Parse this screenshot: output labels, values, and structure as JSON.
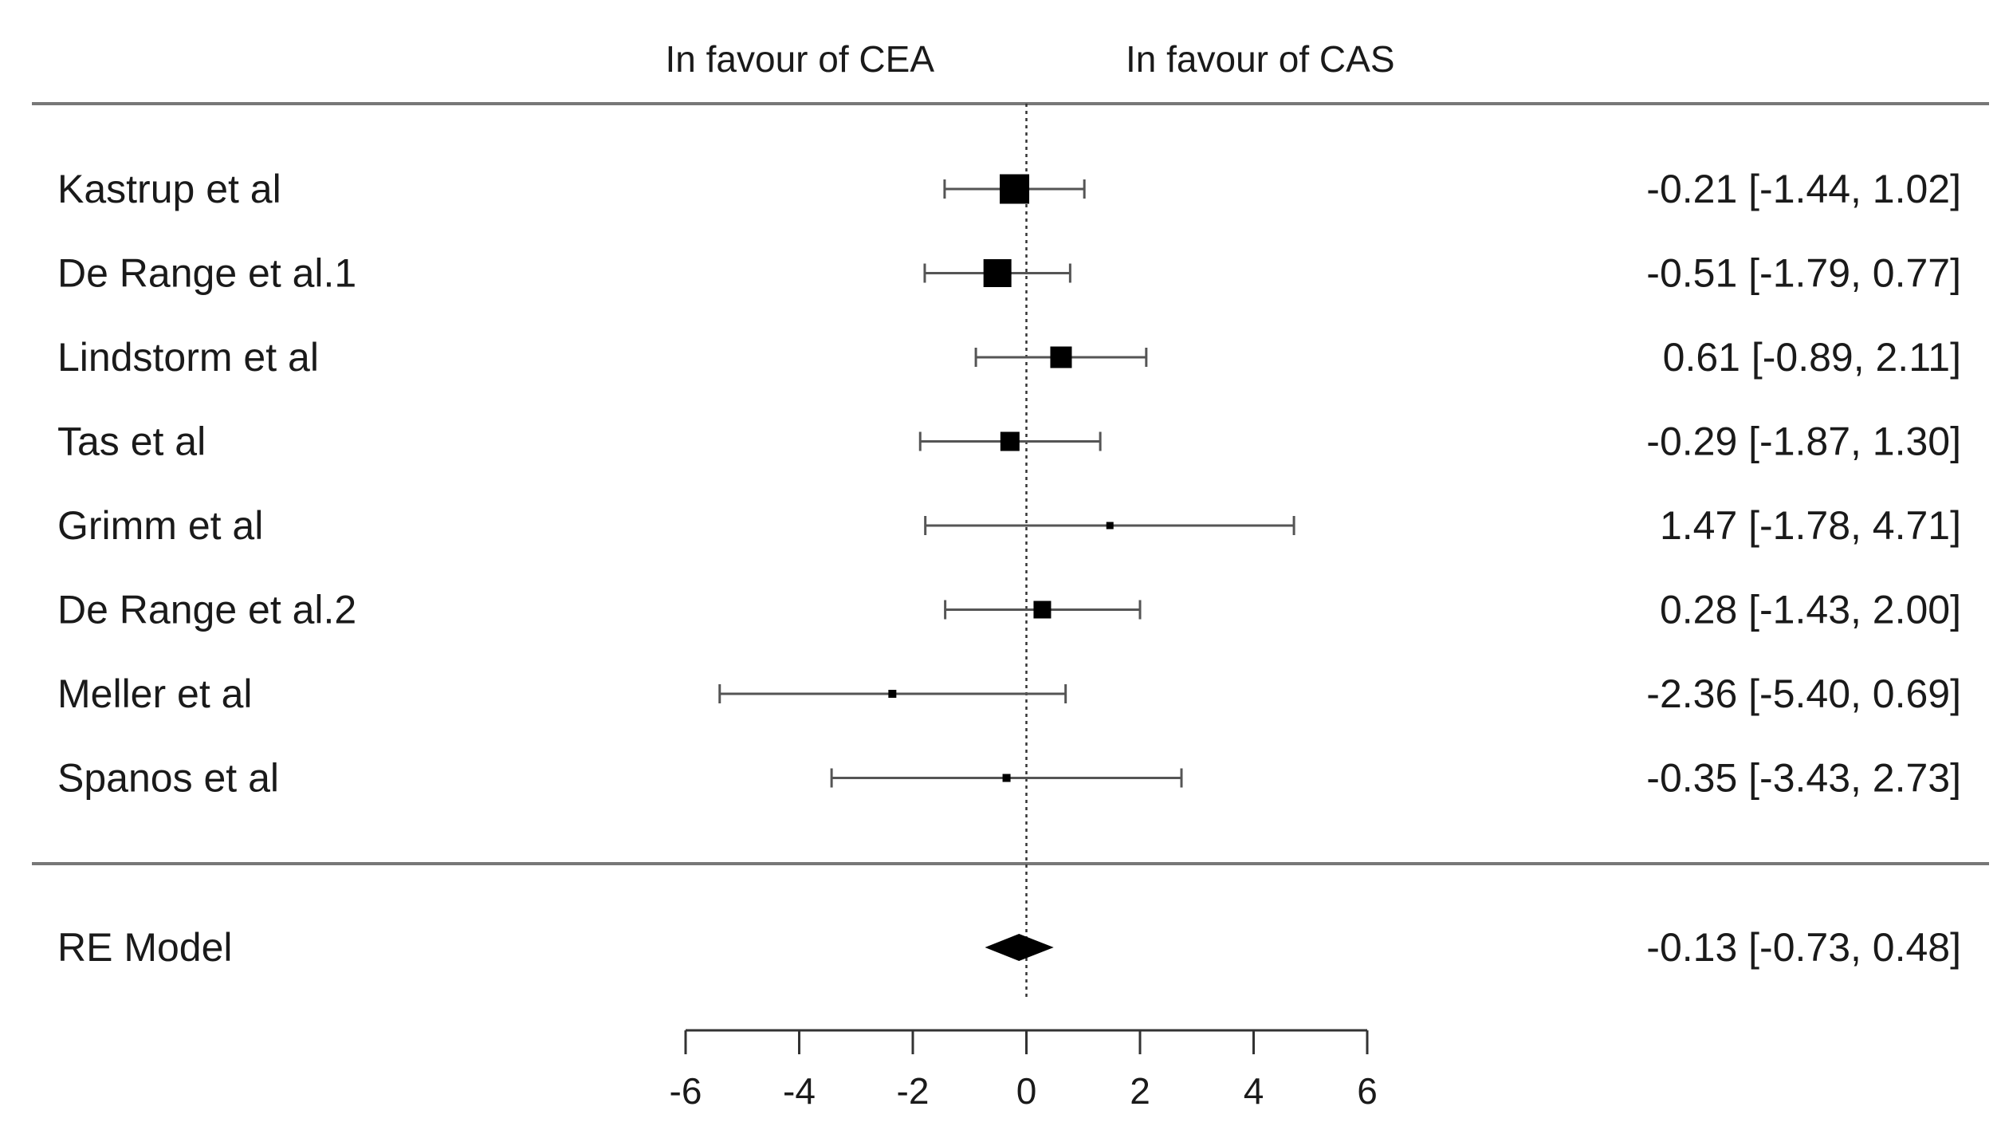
{
  "chart_data": {
    "type": "forest",
    "column_headers": {
      "left": "In favour of CEA",
      "right": "In favour of CAS"
    },
    "xlim": [
      -6,
      6
    ],
    "xticks": [
      "-6",
      "-4",
      "-2",
      "0",
      "2",
      "4",
      "6"
    ],
    "reference_line": 0,
    "studies": [
      {
        "label": "Kastrup et al",
        "estimate": -0.21,
        "ci_low": -1.44,
        "ci_high": 1.02,
        "text": "-0.21 [-1.44, 1.02]",
        "weight": 3.3
      },
      {
        "label": "De Range et al.1",
        "estimate": -0.51,
        "ci_low": -1.79,
        "ci_high": 0.77,
        "text": "-0.51 [-1.79, 0.77]",
        "weight": 3.1
      },
      {
        "label": "Lindstorm et al",
        "estimate": 0.61,
        "ci_low": -0.89,
        "ci_high": 2.11,
        "text": "0.61 [-0.89, 2.11]",
        "weight": 2.3
      },
      {
        "label": "Tas et al",
        "estimate": -0.29,
        "ci_low": -1.87,
        "ci_high": 1.3,
        "text": "-0.29 [-1.87, 1.30]",
        "weight": 2.0
      },
      {
        "label": "Grimm et al",
        "estimate": 1.47,
        "ci_low": -1.78,
        "ci_high": 4.71,
        "text": "1.47 [-1.78, 4.71]",
        "weight": 0.5
      },
      {
        "label": "De Range et al.2",
        "estimate": 0.28,
        "ci_low": -1.43,
        "ci_high": 2.0,
        "text": "0.28 [-1.43, 2.00]",
        "weight": 1.8
      },
      {
        "label": "Meller et al",
        "estimate": -2.36,
        "ci_low": -5.4,
        "ci_high": 0.69,
        "text": "-2.36 [-5.40, 0.69]",
        "weight": 0.6
      },
      {
        "label": "Spanos et al",
        "estimate": -0.35,
        "ci_low": -3.43,
        "ci_high": 2.73,
        "text": "-0.35 [-3.43, 2.73]",
        "weight": 0.6
      }
    ],
    "summary": {
      "label": "RE Model",
      "estimate": -0.13,
      "ci_low": -0.73,
      "ci_high": 0.48,
      "text": "-0.13 [-0.73, 0.48]"
    },
    "colors": {
      "marker": "#000000",
      "ci_line": "#555555",
      "rule": "#777777",
      "reference": "#333333"
    }
  }
}
